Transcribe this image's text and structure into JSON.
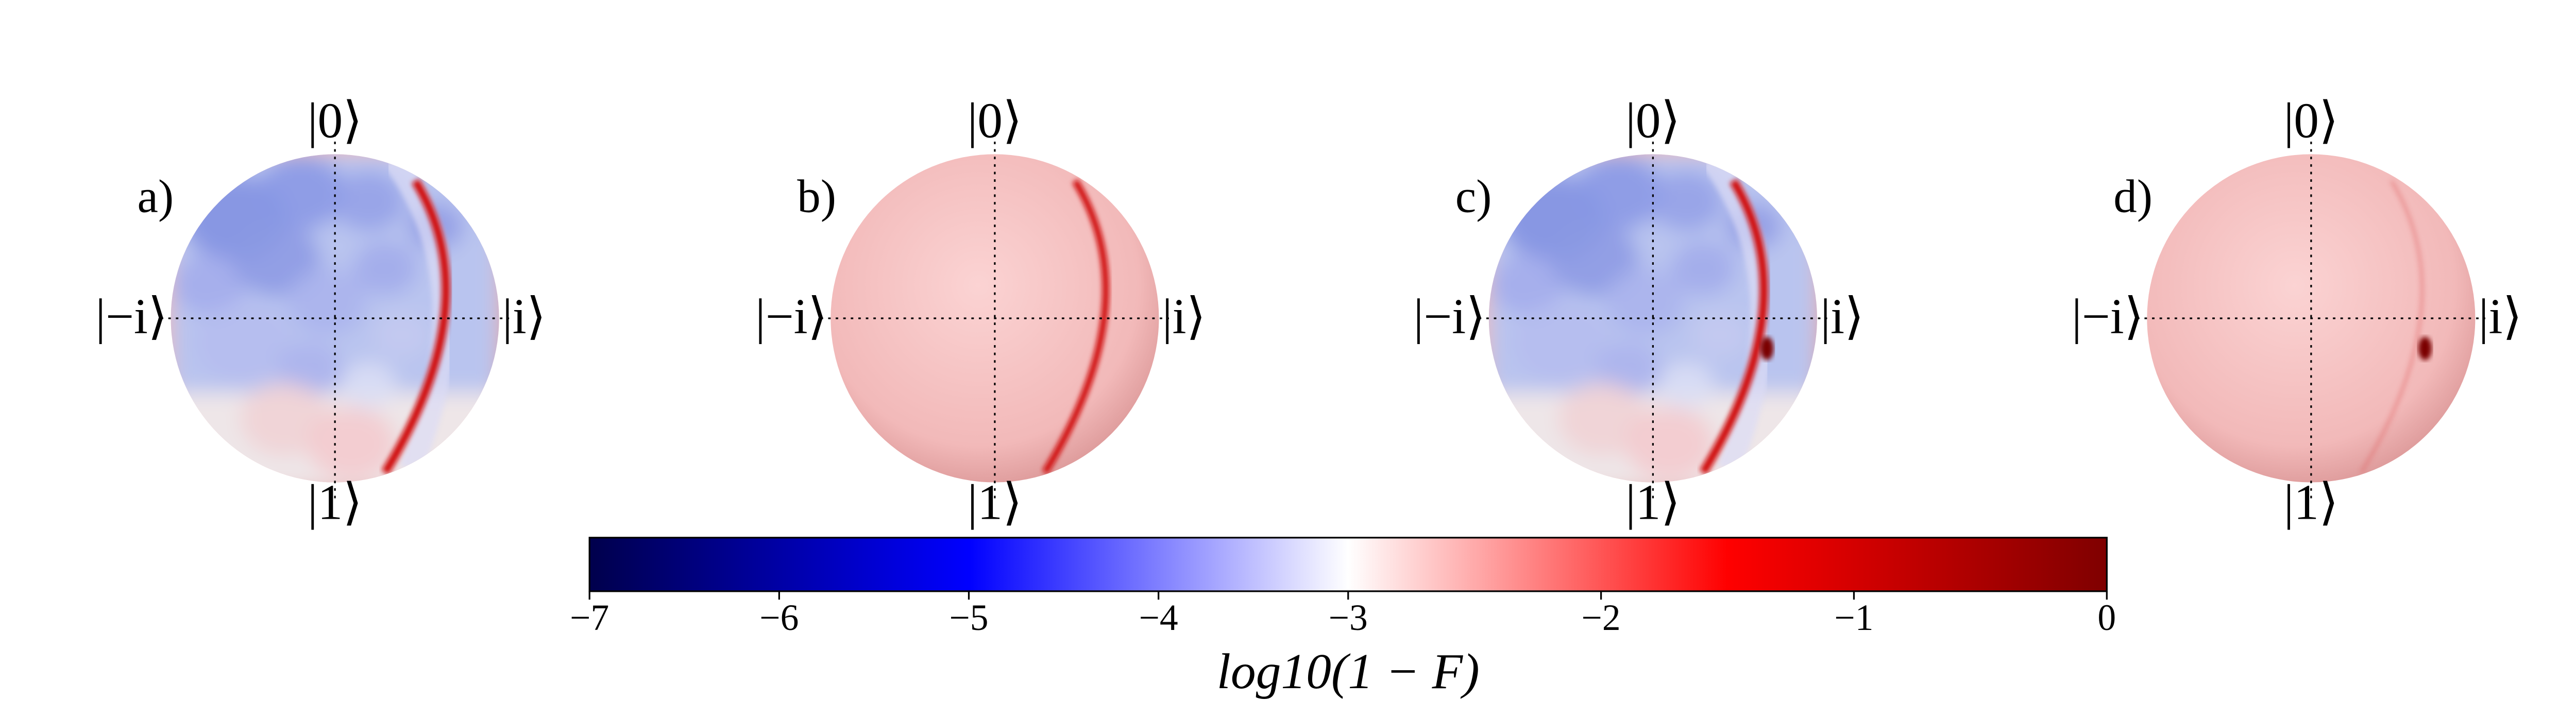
{
  "chart_data": {
    "type": "colorbar",
    "panels": [
      {
        "label": "a)",
        "top": "|0⟩",
        "bottom": "|1⟩",
        "left": "|−i⟩",
        "right": "|i⟩"
      },
      {
        "label": "b)",
        "top": "|0⟩",
        "bottom": "|1⟩",
        "left": "|−i⟩",
        "right": "|i⟩"
      },
      {
        "label": "c)",
        "top": "|0⟩",
        "bottom": "|1⟩",
        "left": "|−i⟩",
        "right": "|i⟩"
      },
      {
        "label": "d)",
        "top": "|0⟩",
        "bottom": "|1⟩",
        "left": "|−i⟩",
        "right": "|i⟩"
      }
    ],
    "xlim": [
      -7,
      0
    ],
    "vcenter": -3,
    "xticks": [
      {
        "value": -7,
        "label": "−7"
      },
      {
        "value": -6,
        "label": "−6"
      },
      {
        "value": -5,
        "label": "−5"
      },
      {
        "value": -4,
        "label": "−4"
      },
      {
        "value": -3,
        "label": "−3"
      },
      {
        "value": -2,
        "label": "−2"
      },
      {
        "value": -1,
        "label": "−1"
      },
      0
    ],
    "xlabel": "log10(1 − F)",
    "colormap": [
      "#00004c",
      "#0000ff",
      "#ffffff",
      "#ff0000",
      "#7f0000"
    ]
  }
}
